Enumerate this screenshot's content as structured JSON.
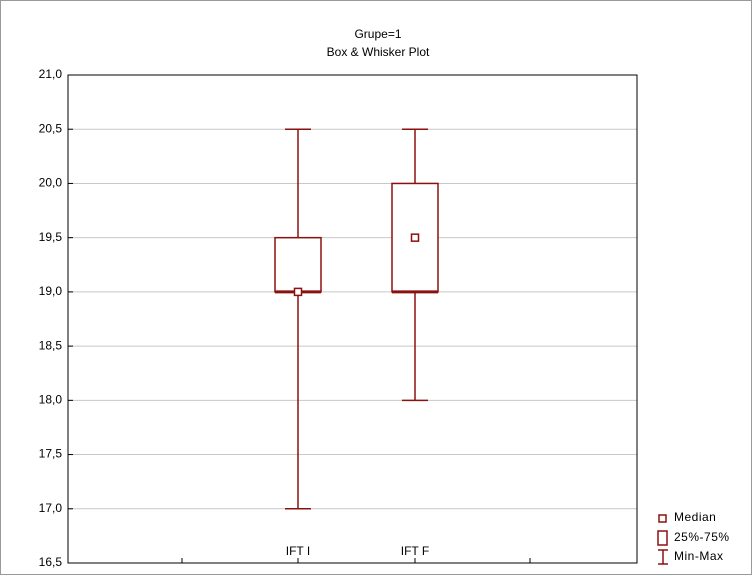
{
  "chart_data": {
    "type": "box",
    "title": "Grupe=1",
    "subtitle": "Box & Whisker Plot",
    "categories": [
      "IFT I",
      "IFT F"
    ],
    "min": [
      17.0,
      18.0
    ],
    "q1": [
      19.0,
      19.0
    ],
    "median": [
      19.0,
      19.5
    ],
    "q3": [
      19.5,
      20.0
    ],
    "max": [
      20.5,
      20.5
    ],
    "color": "#8b1010",
    "ylim": [
      16.5,
      21.0
    ],
    "yticks": [
      {
        "value": 16.5,
        "label": "16,5"
      },
      {
        "value": 17.0,
        "label": "17,0"
      },
      {
        "value": 17.5,
        "label": "17,5"
      },
      {
        "value": 18.0,
        "label": "18,0"
      },
      {
        "value": 18.5,
        "label": "18,5"
      },
      {
        "value": 19.0,
        "label": "19,0"
      },
      {
        "value": 19.5,
        "label": "19,5"
      },
      {
        "value": 20.0,
        "label": "20,0"
      },
      {
        "value": 20.5,
        "label": "20,5"
      },
      {
        "value": 21.0,
        "label": "21,0"
      }
    ],
    "grid": true,
    "legend": [
      "Median",
      "25%-75%",
      "Min-Max"
    ]
  }
}
